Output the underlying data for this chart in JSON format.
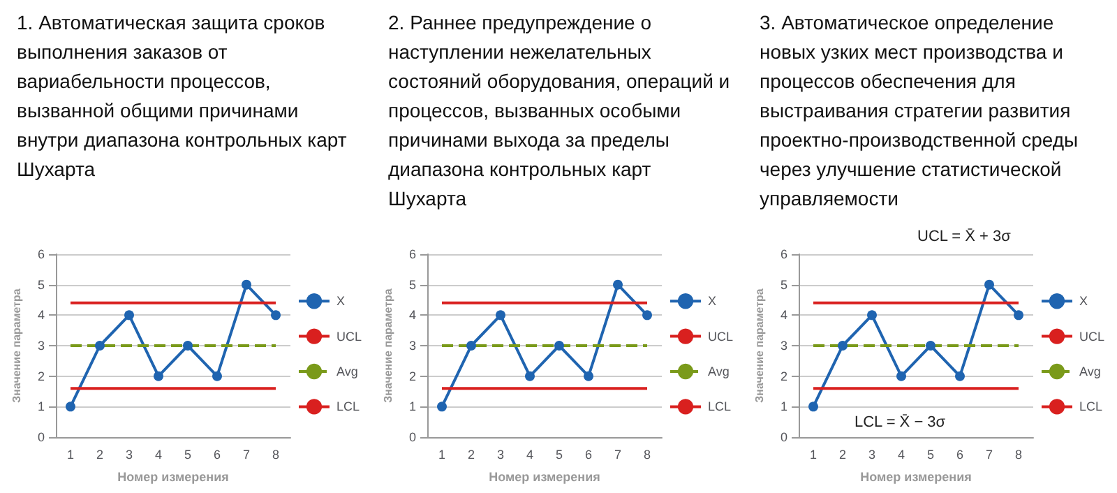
{
  "chart_data": [
    {
      "type": "line",
      "title": "1. Автоматическая защита сроков выполнения заказов от вариабельности процессов, вызванной общими причинами внутри диапазона контрольных карт Шухарта",
      "xlabel": "Номер измерения",
      "ylabel": "Значение параметра",
      "categories": [
        "1",
        "2",
        "3",
        "4",
        "5",
        "6",
        "7",
        "8"
      ],
      "series": [
        {
          "name": "X",
          "color": "#1f64b0",
          "marker": "circle",
          "line_style": "solid",
          "values": [
            1,
            3,
            4,
            2,
            3,
            2,
            5,
            4
          ]
        },
        {
          "name": "UCL",
          "color": "#d9201f",
          "marker": "none",
          "line_style": "solid",
          "values": [
            4.4,
            4.4,
            4.4,
            4.4,
            4.4,
            4.4,
            4.4,
            4.4
          ]
        },
        {
          "name": "Avg",
          "color": "#7a9a1a",
          "marker": "none",
          "line_style": "dashed",
          "values": [
            3,
            3,
            3,
            3,
            3,
            3,
            3,
            3
          ]
        },
        {
          "name": "LCL",
          "color": "#d9201f",
          "marker": "none",
          "line_style": "solid",
          "values": [
            1.6,
            1.6,
            1.6,
            1.6,
            1.6,
            1.6,
            1.6,
            1.6
          ]
        }
      ],
      "ylim": [
        0,
        6
      ],
      "yticks": [
        0,
        1,
        2,
        3,
        4,
        5,
        6
      ],
      "grid": "y",
      "legend": "right"
    },
    {
      "type": "line",
      "title": "2. Раннее предупреждение о наступлении нежелательных состояний оборудования, операций и процессов, вызванных особыми причинами выхода за пределы диапазона контрольных карт Шухарта",
      "xlabel": "Номер измерения",
      "ylabel": "Значение параметра",
      "categories": [
        "1",
        "2",
        "3",
        "4",
        "5",
        "6",
        "7",
        "8"
      ],
      "series": [
        {
          "name": "X",
          "color": "#1f64b0",
          "marker": "circle",
          "line_style": "solid",
          "values": [
            1,
            3,
            4,
            2,
            3,
            2,
            5,
            4
          ]
        },
        {
          "name": "UCL",
          "color": "#d9201f",
          "marker": "none",
          "line_style": "solid",
          "values": [
            4.4,
            4.4,
            4.4,
            4.4,
            4.4,
            4.4,
            4.4,
            4.4
          ]
        },
        {
          "name": "Avg",
          "color": "#7a9a1a",
          "marker": "none",
          "line_style": "dashed",
          "values": [
            3,
            3,
            3,
            3,
            3,
            3,
            3,
            3
          ]
        },
        {
          "name": "LCL",
          "color": "#d9201f",
          "marker": "none",
          "line_style": "solid",
          "values": [
            1.6,
            1.6,
            1.6,
            1.6,
            1.6,
            1.6,
            1.6,
            1.6
          ]
        }
      ],
      "ylim": [
        0,
        6
      ],
      "yticks": [
        0,
        1,
        2,
        3,
        4,
        5,
        6
      ],
      "grid": "y",
      "legend": "right"
    },
    {
      "type": "line",
      "title": "3. Автоматическое определение новых узких мест производства и процессов обеспечения для выстраивания стратегии развития проектно-производственной среды через улучшение статистической управляемости",
      "xlabel": "Номер измерения",
      "ylabel": "Значение параметра",
      "categories": [
        "1",
        "2",
        "3",
        "4",
        "5",
        "6",
        "7",
        "8"
      ],
      "series": [
        {
          "name": "X",
          "color": "#1f64b0",
          "marker": "circle",
          "line_style": "solid",
          "values": [
            1,
            3,
            4,
            2,
            3,
            2,
            5,
            4
          ]
        },
        {
          "name": "UCL",
          "color": "#d9201f",
          "marker": "none",
          "line_style": "solid",
          "values": [
            4.4,
            4.4,
            4.4,
            4.4,
            4.4,
            4.4,
            4.4,
            4.4
          ]
        },
        {
          "name": "Avg",
          "color": "#7a9a1a",
          "marker": "none",
          "line_style": "dashed",
          "values": [
            3,
            3,
            3,
            3,
            3,
            3,
            3,
            3
          ]
        },
        {
          "name": "LCL",
          "color": "#d9201f",
          "marker": "none",
          "line_style": "solid",
          "values": [
            1.6,
            1.6,
            1.6,
            1.6,
            1.6,
            1.6,
            1.6,
            1.6
          ]
        }
      ],
      "annotations": [
        "UCL = X̄ + 3σ",
        "LCL = X̄ − 3σ"
      ],
      "ylim": [
        0,
        6
      ],
      "yticks": [
        0,
        1,
        2,
        3,
        4,
        5,
        6
      ],
      "grid": "y",
      "legend": "right"
    }
  ]
}
